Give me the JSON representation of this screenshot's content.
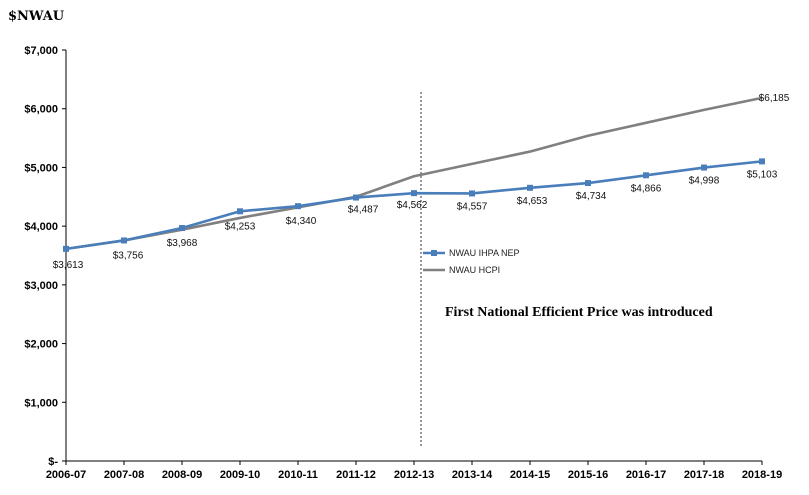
{
  "chart_data": {
    "type": "line",
    "ylabel": "$NWAU",
    "categories": [
      "2006-07",
      "2007-08",
      "2008-09",
      "2009-10",
      "2010-11",
      "2011-12",
      "2012-13",
      "2013-14",
      "2014-15",
      "2015-16",
      "2016-17",
      "2017-18",
      "2018-19"
    ],
    "ylim": [
      0,
      7000
    ],
    "yticks": [
      {
        "value": 0,
        "label": "$-"
      },
      {
        "value": 1000,
        "label": "$1,000"
      },
      {
        "value": 2000,
        "label": "$2,000"
      },
      {
        "value": 3000,
        "label": "$3,000"
      },
      {
        "value": 4000,
        "label": "$4,000"
      },
      {
        "value": 5000,
        "label": "$5,000"
      },
      {
        "value": 6000,
        "label": "$6,000"
      },
      {
        "value": 7000,
        "label": "$7,000"
      }
    ],
    "series": [
      {
        "name": "NWAU IHPA NEP",
        "color": "#4a7ebb",
        "marker": "square",
        "values": [
          3613,
          3756,
          3968,
          4253,
          4340,
          4487,
          4562,
          4557,
          4653,
          4734,
          4866,
          4998,
          5103
        ],
        "labels": [
          "$3,613",
          "$3,756",
          "$3,968",
          "$4,253",
          "$4,340",
          "$4,487",
          "$4,562",
          "$4,557",
          "$4,653",
          "$4,734",
          "$4,866",
          "$4,998",
          "$5,103"
        ]
      },
      {
        "name": "NWAU HCPI",
        "color": "#808080",
        "marker": "none",
        "values": [
          3613,
          3756,
          3940,
          4140,
          4320,
          4500,
          4850,
          5060,
          5270,
          5540,
          5760,
          5980,
          6185
        ],
        "end_label": "$6,185"
      }
    ],
    "vline": {
      "category": "2012-13"
    },
    "annotation": "First National Efficient Price was introduced",
    "legend": "center",
    "grid": false
  }
}
